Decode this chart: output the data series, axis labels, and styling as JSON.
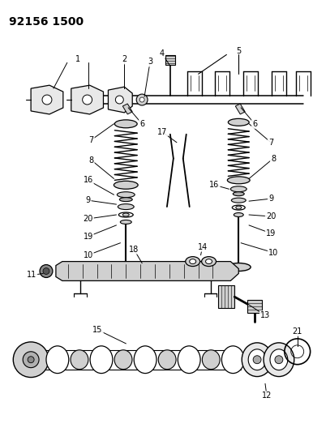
{
  "title": "92156 1500",
  "bg_color": "#ffffff",
  "line_color": "#000000",
  "fig_w": 3.86,
  "fig_h": 5.33,
  "dpi": 100
}
